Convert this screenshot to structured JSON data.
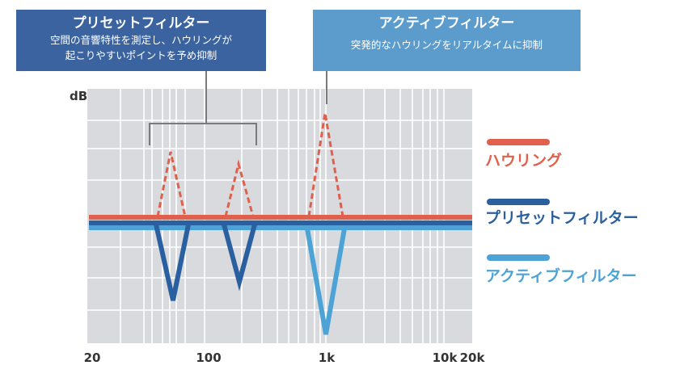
{
  "callouts": {
    "preset": {
      "title": "プリセットフィルター",
      "description_line1": "空間の音響特性を測定し、ハウリングが",
      "description_line2": "起こりやすいポイントを予め抑制"
    },
    "active": {
      "title": "アクティブフィルター",
      "description": "突発的なハウリングをリアルタイムに抑制"
    }
  },
  "axis": {
    "y_label": "dB",
    "x_ticks": [
      "20",
      "100",
      "1k",
      "10k",
      "20k"
    ]
  },
  "legend": {
    "howling": {
      "label": "ハウリング",
      "color": "#e0604e"
    },
    "preset_filter": {
      "label": "プリセットフィルター",
      "color": "#2a5fa0"
    },
    "active_filter": {
      "label": "アクティブフィルター",
      "color": "#4da3d6"
    }
  }
}
